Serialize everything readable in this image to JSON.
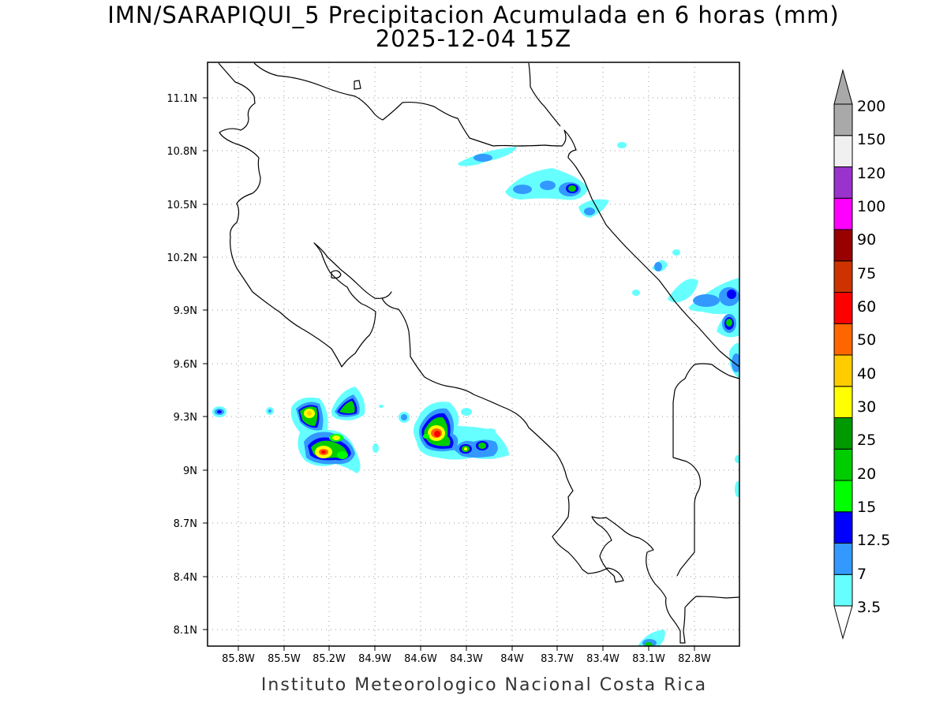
{
  "title": {
    "line1": "IMN/SARAPIQUI_5 Precipitacion Acumulada en 6 horas (mm)",
    "line2": "2025-12-04 15Z"
  },
  "credit": "Instituto Meteorologico Nacional Costa Rica",
  "map": {
    "lat_labels": [
      "11.1N",
      "10.8N",
      "10.5N",
      "10.2N",
      "9.9N",
      "9.6N",
      "9.3N",
      "9N",
      "8.7N",
      "8.4N",
      "8.1N"
    ],
    "lon_labels": [
      "85.8W",
      "85.5W",
      "85.2W",
      "84.9W",
      "84.6W",
      "84.3W",
      "84W",
      "83.7W",
      "83.4W",
      "83.1W",
      "82.8W"
    ],
    "grid": true,
    "colors": {
      "coast": "#000000",
      "grid": "#9a9a9a",
      "frame": "#000000"
    }
  },
  "colorbar": {
    "levels": [
      "3.5",
      "7",
      "12.5",
      "15",
      "20",
      "25",
      "30",
      "40",
      "50",
      "60",
      "75",
      "90",
      "100",
      "120",
      "150",
      "200"
    ],
    "colors": [
      "#66ffff",
      "#3399ff",
      "#0000ff",
      "#00ff00",
      "#00cc00",
      "#009900",
      "#ffff00",
      "#ffcc00",
      "#ff6600",
      "#ff0000",
      "#cc3300",
      "#990000",
      "#ff00ff",
      "#9933cc",
      "#f0f0f0",
      "#a9a9a9"
    ],
    "over_color": "#a9a9a9",
    "under_color": "#ffffff"
  }
}
